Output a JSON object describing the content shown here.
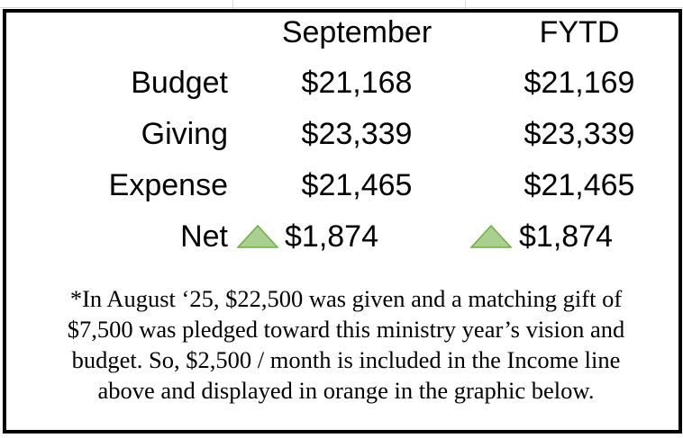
{
  "table": {
    "header": [
      "September",
      "FYTD"
    ],
    "rows": [
      [
        "Budget",
        "$21,168",
        "$21,169"
      ],
      [
        "Giving",
        "$23,339",
        "$23,339"
      ],
      [
        "Expense",
        "$21,465",
        "$21,465"
      ],
      [
        "Net",
        "$1,874",
        "$1,874"
      ]
    ]
  },
  "footnote": {
    "lines": [
      "*In August ‘25, $22,500 was given and a matching gift of",
      "$7,500 was pledged toward this ministry year’s vision and",
      "budget. So, $2,500 / month is included in the Income line",
      "above and displayed in orange in the graphic below."
    ]
  }
}
